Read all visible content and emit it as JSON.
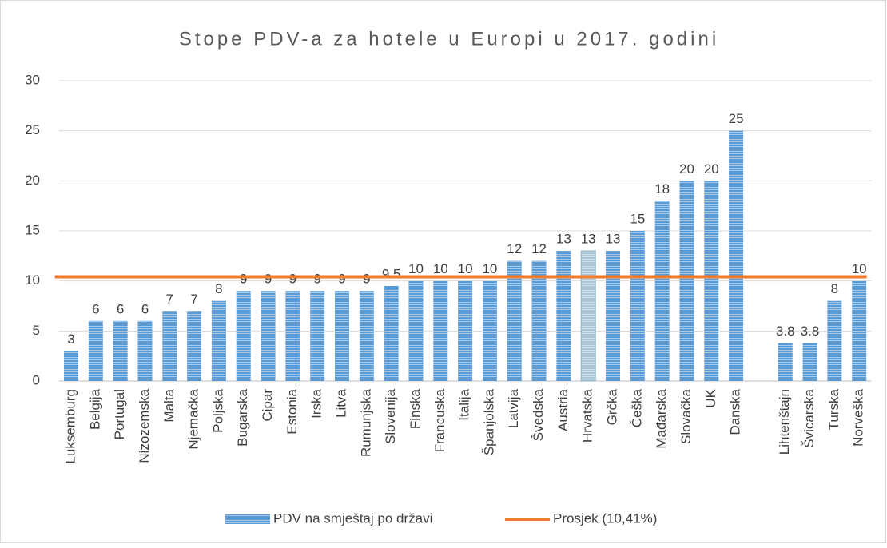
{
  "chart_data": {
    "type": "bar",
    "title": "Stope PDV-a za hotele u Europi u 2017. godini",
    "categories": [
      "Luksemburg",
      "Belgija",
      "Portugal",
      "Nizozemska",
      "Malta",
      "Njemačka",
      "Poljska",
      "Bugarska",
      "Cipar",
      "Estonia",
      "Irska",
      "Litva",
      "Rumunjska",
      "Slovenija",
      "Finska",
      "Francuska",
      "Italija",
      "Španjolska",
      "Latvija",
      "Švedska",
      "Austria",
      "Hrvatska",
      "Grčka",
      "Češka",
      "Mađarska",
      "Slovačka",
      "UK",
      "Danska",
      null,
      "Lihtenštajn",
      "Švicarska",
      "Turska",
      "Norveška"
    ],
    "series": [
      {
        "name": "PDV na smještaj po državi",
        "color": "#5b9bd5",
        "highlight_index": 21,
        "highlight_color": "#a8c6d6",
        "values": [
          3,
          6,
          6,
          6,
          7,
          7,
          8,
          9,
          9,
          9,
          9,
          9,
          9,
          9.5,
          10,
          10,
          10,
          10,
          12,
          12,
          13,
          13,
          13,
          15,
          18,
          20,
          20,
          25,
          null,
          3.8,
          3.8,
          8,
          10
        ]
      },
      {
        "name": "Prosjek (10,41%)",
        "type": "line",
        "color": "#ed7d31",
        "value": 10.41
      }
    ],
    "ylim": [
      0,
      30
    ],
    "yticks": [
      0,
      5,
      10,
      15,
      20,
      25,
      30
    ],
    "grid": true
  }
}
